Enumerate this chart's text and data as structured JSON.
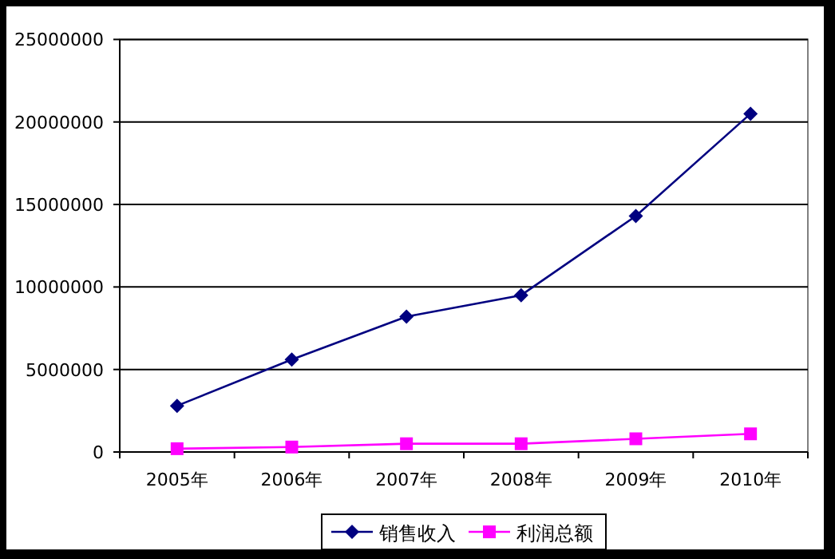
{
  "chart_data": {
    "type": "line",
    "categories": [
      "2005年",
      "2006年",
      "2007年",
      "2008年",
      "2009年",
      "2010年"
    ],
    "series": [
      {
        "name": "销售收入",
        "color": "#000080",
        "marker": "diamond",
        "values": [
          2800000,
          5600000,
          8200000,
          9500000,
          14300000,
          20500000
        ]
      },
      {
        "name": "利润总额",
        "color": "#ff00ff",
        "marker": "square",
        "values": [
          200000,
          300000,
          500000,
          500000,
          800000,
          1100000
        ]
      }
    ],
    "ylim": [
      0,
      25000000
    ],
    "yticks": [
      0,
      5000000,
      10000000,
      15000000,
      20000000,
      25000000
    ],
    "grid": "y",
    "legend": "bottom"
  }
}
